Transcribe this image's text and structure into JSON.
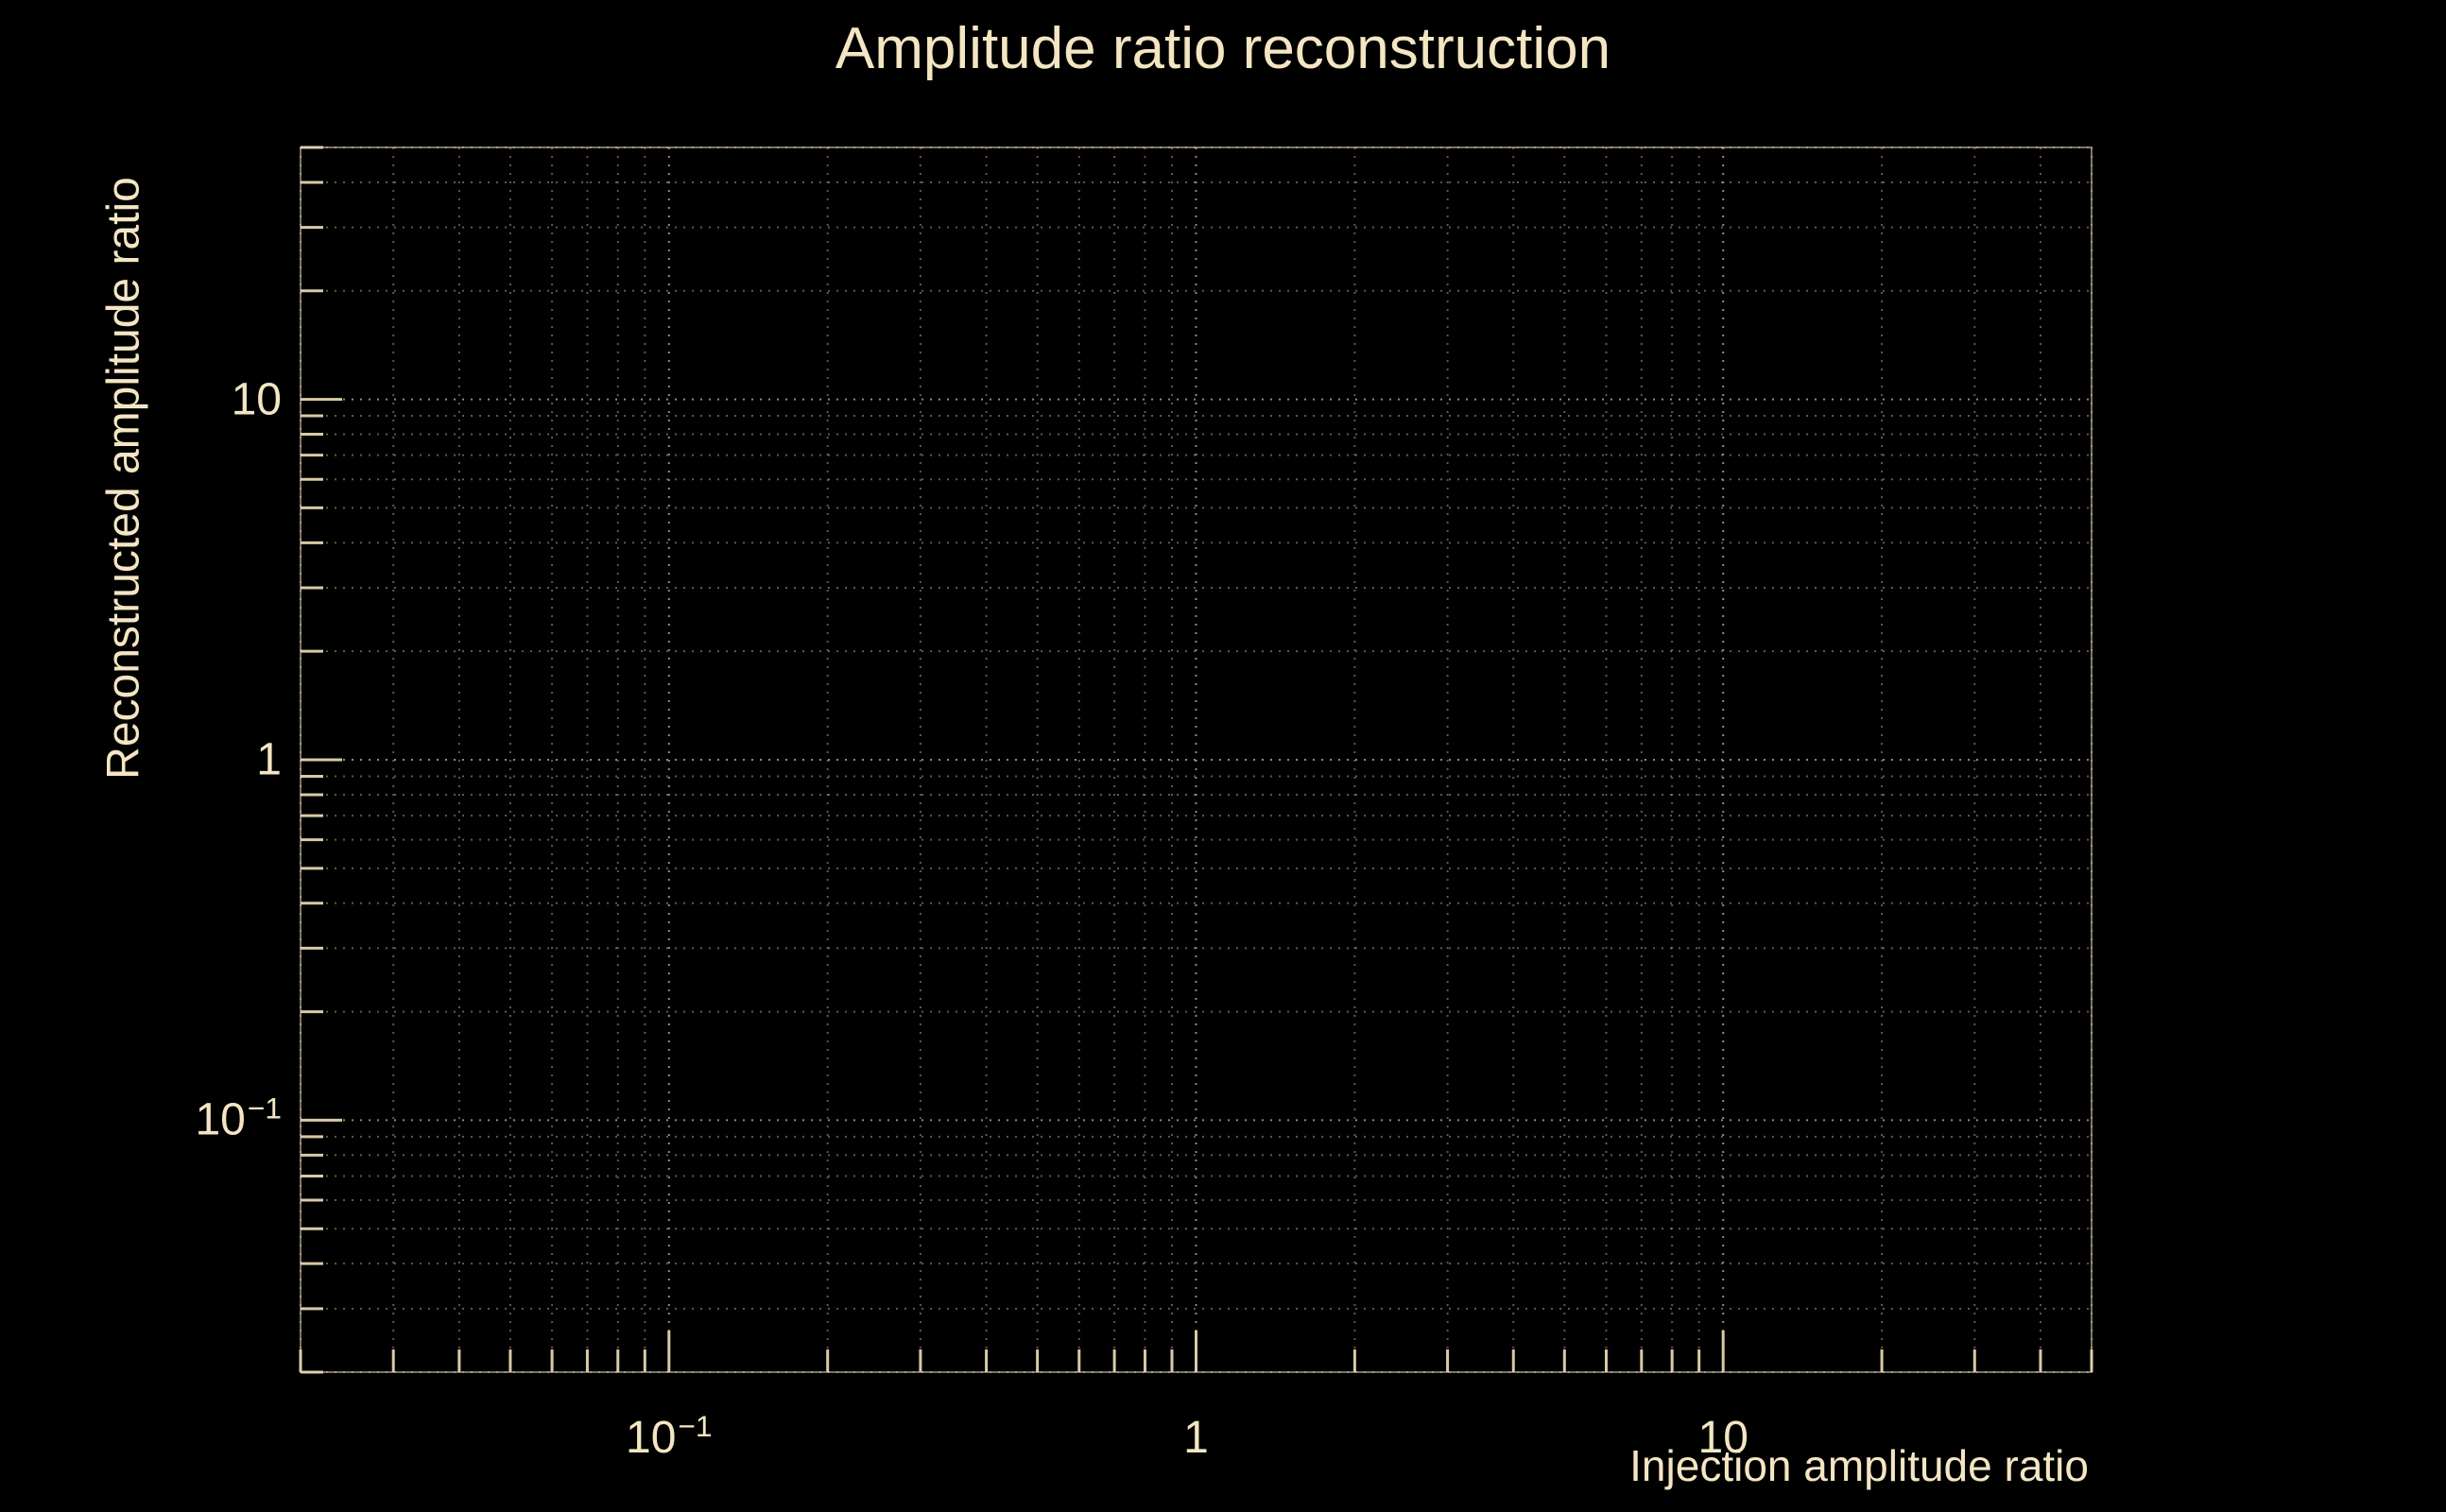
{
  "colors": {
    "background": "#000000",
    "text": "#F4E6C3",
    "grid": "#D5C59E",
    "axis": "#E3D4AE"
  },
  "chart_data": {
    "type": "scatter",
    "title": "Amplitude ratio reconstruction",
    "xlabel": "Injection amplitude ratio",
    "ylabel": "Reconstructed amplitude ratio",
    "xscale": "log",
    "yscale": "log",
    "xlim": [
      0.02,
      50
    ],
    "ylim": [
      0.02,
      50
    ],
    "grid": "dotted log grid, major and minor, both axes",
    "legend": "none",
    "x_ticks": [
      {
        "value": 0.1,
        "base": "10",
        "exp": "−1"
      },
      {
        "value": 1,
        "base": "1",
        "exp": ""
      },
      {
        "value": 10,
        "base": "10",
        "exp": ""
      }
    ],
    "y_ticks": [
      {
        "value": 10,
        "base": "10",
        "exp": ""
      },
      {
        "value": 1,
        "base": "1",
        "exp": ""
      },
      {
        "value": 0.1,
        "base": "10",
        "exp": "−1"
      }
    ],
    "series": []
  }
}
